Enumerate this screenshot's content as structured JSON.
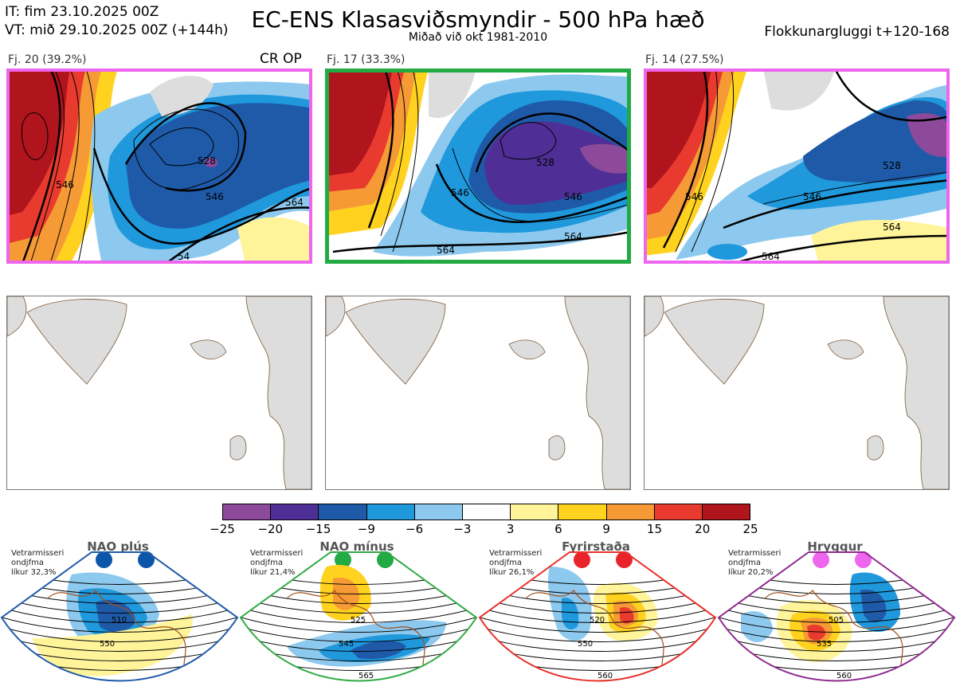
{
  "header": {
    "it_line": "IT: fim 23.10.2025 00Z",
    "vt_line": "VT: mið 29.10.2025 00Z  (+144h)",
    "title": "EC-ENS Klasasviðsmyndir - 500 hPa hæð",
    "subtitle": "Miðað við okt 1981-2010",
    "window": "Flokkunargluggi t+120-168"
  },
  "clusters": [
    {
      "label": "Fj. 20 (39.2%)",
      "badge": "CR OP",
      "frame_color": "#ee66ee",
      "contours": [
        "546",
        "564",
        "528",
        "546",
        "564",
        "546",
        "54"
      ]
    },
    {
      "label": "Fj. 17 (33.3%)",
      "badge": "",
      "frame_color": "#22aa44",
      "contours": [
        "564",
        "546",
        "528",
        "546",
        "564",
        "546"
      ]
    },
    {
      "label": "Fj. 14 (27.5%)",
      "badge": "",
      "frame_color": "#ee66ee",
      "contours": [
        "546",
        "528",
        "546",
        "564",
        "546",
        "564"
      ]
    }
  ],
  "colorbar": {
    "ticks": [
      "−25",
      "−20",
      "−15",
      "−9",
      "−6",
      "−3",
      "3",
      "6",
      "9",
      "15",
      "20",
      "25"
    ],
    "colors": [
      "#8e4a9a",
      "#4f2f96",
      "#1f5aa8",
      "#1f98dc",
      "#8dc9ee",
      "#ffffff",
      "#fff49a",
      "#ffd21f",
      "#f59a35",
      "#e83a2e",
      "#b0141c"
    ]
  },
  "regimes": [
    {
      "name": "NAO plús",
      "note1": "Vetrarmisseri",
      "note2": "ondjfma",
      "note3": "líkur 32,3%",
      "border": "#1f5aa8",
      "dot": "#0b56a8",
      "contours": [
        "510",
        "550"
      ]
    },
    {
      "name": "NAO mínus",
      "note1": "Vetrarmisseri",
      "note2": "ondjfma",
      "note3": "líkur 21,4%",
      "border": "#2eaa44",
      "dot": "#22aa44",
      "contours": [
        "525",
        "545",
        "565"
      ]
    },
    {
      "name": "Fyrirstaða",
      "note1": "Vetrarmisseri",
      "note2": "ondjfma",
      "note3": "líkur 26,1%",
      "border": "#e8302a",
      "dot": "#e8242a",
      "contours": [
        "520",
        "550",
        "560"
      ]
    },
    {
      "name": "Hryggur",
      "note1": "Vetrarmisseri",
      "note2": "ondjfma",
      "note3": "líkur 20,2%",
      "border": "#8e2a8e",
      "dot": "#ee66ee",
      "contours": [
        "505",
        "535",
        "560"
      ]
    }
  ]
}
